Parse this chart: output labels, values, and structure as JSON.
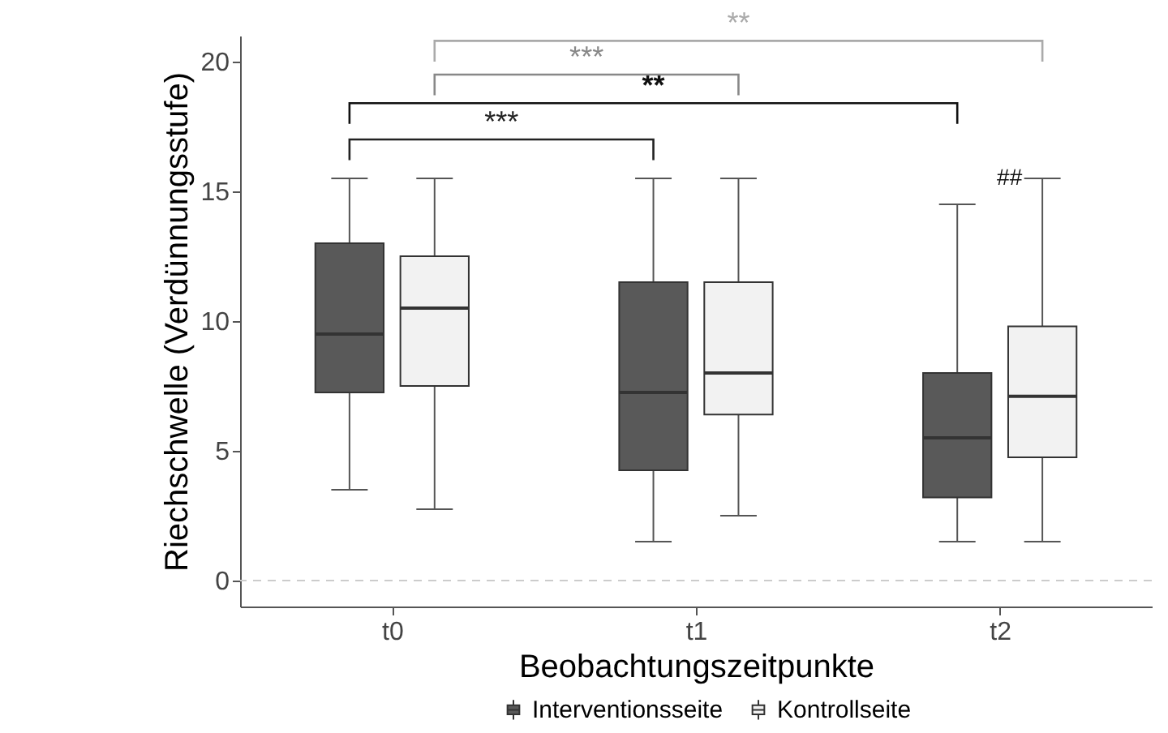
{
  "chart_data": {
    "type": "box",
    "xlabel": "Beobachtungszeitpunkte",
    "ylabel": "Riechschwelle (Verdünnungsstufe)",
    "categories": [
      "t0",
      "t1",
      "t2"
    ],
    "ylim": [
      -1,
      21
    ],
    "yticks": [
      0,
      5,
      10,
      15,
      20
    ],
    "grid": false,
    "legend": "bottom",
    "ref_lines": [
      {
        "axis": "y",
        "value": 0,
        "color": "#cccccc",
        "line_style": "dashed"
      }
    ],
    "annotations": [
      "***",
      "**",
      "***",
      "**",
      "##"
    ],
    "series": [
      {
        "name": "Interventionsseite",
        "color": "#595959",
        "boxes": [
          {
            "low": 3.5,
            "q1": 7.25,
            "median": 9.5,
            "q3": 13,
            "high": 15.5
          },
          {
            "low": 1.5,
            "q1": 4.25,
            "median": 7.25,
            "q3": 11.5,
            "high": 15.5
          },
          {
            "low": 1.5,
            "q1": 3.2,
            "median": 5.5,
            "q3": 8,
            "high": 14.5
          }
        ]
      },
      {
        "name": "Kontrollseite",
        "color": "#f2f2f2",
        "boxes": [
          {
            "low": 2.75,
            "q1": 7.5,
            "median": 10.5,
            "q3": 12.5,
            "high": 15.5
          },
          {
            "low": 2.5,
            "q1": 6.4,
            "median": 8,
            "q3": 11.5,
            "high": 15.5
          },
          {
            "low": 1.5,
            "q1": 4.75,
            "median": 7.1,
            "q3": 9.8,
            "high": 15.5
          }
        ]
      }
    ]
  }
}
